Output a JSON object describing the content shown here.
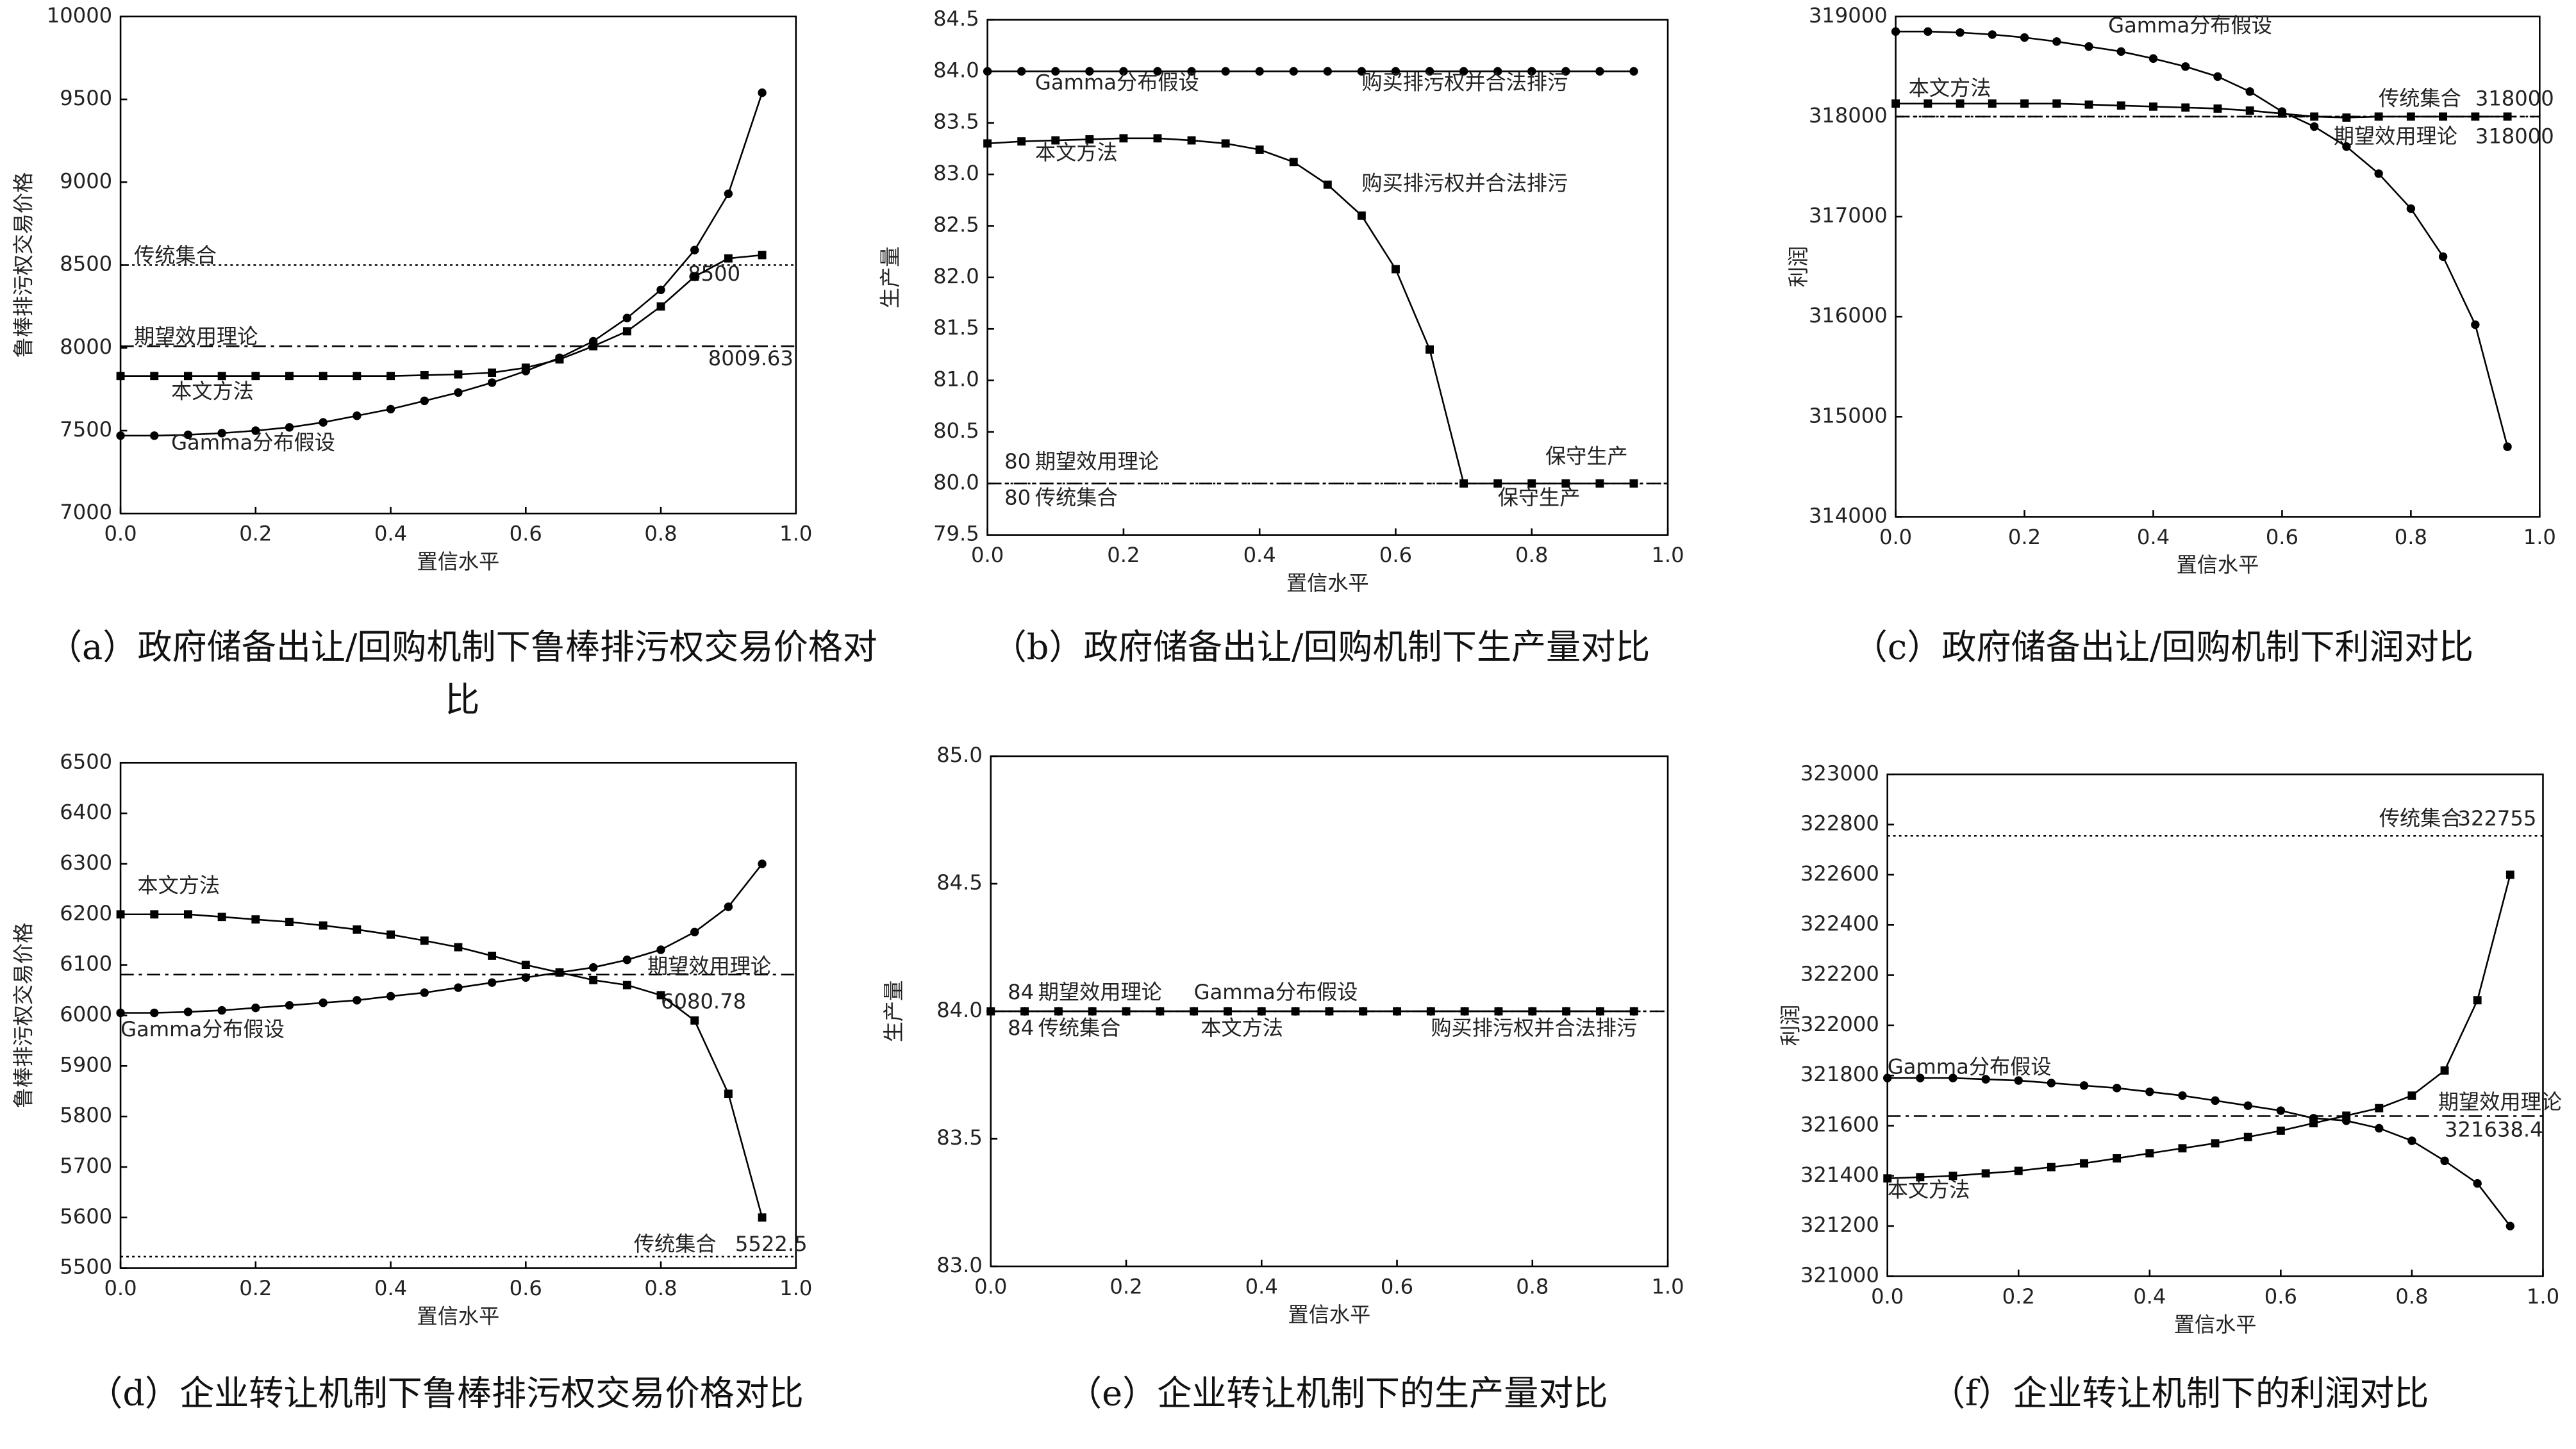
{
  "chart_data": [
    {
      "type": "line",
      "caption": "（a）政府储备出让/回购机制下鲁棒排污权交易价格对比",
      "xlabel": "置信水平",
      "ylabel": "鲁棒排污权交易价格",
      "x": [
        0,
        0.05,
        0.1,
        0.15,
        0.2,
        0.25,
        0.3,
        0.35,
        0.4,
        0.45,
        0.5,
        0.55,
        0.6,
        0.65,
        0.7,
        0.75,
        0.8,
        0.85,
        0.9,
        0.95
      ],
      "xlim": [
        0,
        1
      ],
      "xticks": [
        {
          "value": 0,
          "label": "0.0"
        },
        0.2,
        0.4,
        0.6,
        0.8,
        {
          "value": 1,
          "label": "1.0"
        }
      ],
      "ylim": [
        7000,
        10000
      ],
      "yticks": [
        7000,
        7500,
        8000,
        8500,
        9000,
        9500,
        10000
      ],
      "series": [
        {
          "name": "本文方法",
          "marker": "square",
          "color": "#000000",
          "values": [
            7830,
            7830,
            7830,
            7830,
            7830,
            7830,
            7830,
            7830,
            7830,
            7835,
            7840,
            7850,
            7880,
            7930,
            8010,
            8100,
            8250,
            8430,
            8540,
            8560
          ]
        },
        {
          "name": "Gamma分布假设",
          "marker": "circle",
          "color": "#000000",
          "values": [
            7470,
            7470,
            7475,
            7485,
            7500,
            7520,
            7550,
            7590,
            7630,
            7680,
            7730,
            7790,
            7860,
            7940,
            8040,
            8180,
            8350,
            8590,
            8930,
            9540
          ]
        }
      ],
      "reference_lines": [
        {
          "name": "传统集合",
          "value": 8500,
          "style": "dotted"
        },
        {
          "name": "期望效用理论",
          "value": 8009.63,
          "style": "dashdot"
        }
      ],
      "annotations": []
    },
    {
      "type": "line",
      "caption": "（b）政府储备出让/回购机制下生产量对比",
      "xlabel": "置信水平",
      "ylabel": "生产量",
      "x": [
        0,
        0.05,
        0.1,
        0.15,
        0.2,
        0.25,
        0.3,
        0.35,
        0.4,
        0.45,
        0.5,
        0.55,
        0.6,
        0.65,
        0.7,
        0.75,
        0.8,
        0.85,
        0.9,
        0.95
      ],
      "xlim": [
        0,
        1
      ],
      "xticks": [
        {
          "value": 0,
          "label": "0.0"
        },
        0.2,
        0.4,
        0.6,
        0.8,
        {
          "value": 1,
          "label": "1.0"
        }
      ],
      "ylim": [
        79.5,
        84.5
      ],
      "yticks": [
        79.5,
        {
          "value": 80,
          "label": "80.0"
        },
        80.5,
        {
          "value": 81,
          "label": "81.0"
        },
        81.5,
        {
          "value": 82,
          "label": "82.0"
        },
        82.5,
        {
          "value": 83,
          "label": "83.0"
        },
        83.5,
        {
          "value": 84,
          "label": "84.0"
        },
        84.5
      ],
      "series": [
        {
          "name": "本文方法",
          "marker": "square",
          "color": "#000000",
          "values": [
            83.3,
            83.32,
            83.33,
            83.34,
            83.35,
            83.35,
            83.33,
            83.3,
            83.24,
            83.12,
            82.9,
            82.6,
            82.08,
            81.3,
            80,
            80,
            80,
            80,
            80,
            80
          ]
        },
        {
          "name": "Gamma分布假设",
          "marker": "circle",
          "color": "#000000",
          "values": [
            84,
            84,
            84,
            84,
            84,
            84,
            84,
            84,
            84,
            84,
            84,
            84,
            84,
            84,
            84,
            84,
            84,
            84,
            84,
            84
          ]
        }
      ],
      "reference_lines": [
        {
          "name": "期望效用理论",
          "value": 80,
          "style": "dashdot"
        },
        {
          "name": "传统集合",
          "value": 80,
          "style": "dotted"
        }
      ],
      "annotations": [
        "购买排污权并合法排污",
        "购买排污权并合法排污",
        "保守生产",
        "保守生产"
      ]
    },
    {
      "type": "line",
      "caption": "（c）政府储备出让/回购机制下利润对比",
      "xlabel": "置信水平",
      "ylabel": "利润",
      "x": [
        0,
        0.05,
        0.1,
        0.15,
        0.2,
        0.25,
        0.3,
        0.35,
        0.4,
        0.45,
        0.5,
        0.55,
        0.6,
        0.65,
        0.7,
        0.75,
        0.8,
        0.85,
        0.9,
        0.95
      ],
      "xlim": [
        0,
        1
      ],
      "xticks": [
        {
          "value": 0,
          "label": "0.0"
        },
        0.2,
        0.4,
        0.6,
        0.8,
        {
          "value": 1,
          "label": "1.0"
        }
      ],
      "ylim": [
        314000,
        319000
      ],
      "yticks": [
        314000,
        315000,
        316000,
        317000,
        318000,
        319000
      ],
      "series": [
        {
          "name": "本文方法",
          "marker": "square",
          "color": "#000000",
          "values": [
            318130,
            318130,
            318130,
            318130,
            318130,
            318130,
            318120,
            318110,
            318100,
            318090,
            318080,
            318060,
            318030,
            318000,
            317990,
            318000,
            318000,
            318000,
            318000,
            318000
          ]
        },
        {
          "name": "Gamma分布假设",
          "marker": "circle",
          "color": "#000000",
          "values": [
            318850,
            318850,
            318840,
            318820,
            318790,
            318750,
            318700,
            318650,
            318580,
            318500,
            318400,
            318250,
            318050,
            317900,
            317700,
            317430,
            317080,
            316600,
            315920,
            314700
          ]
        }
      ],
      "reference_lines": [
        {
          "name": "传统集合",
          "value": 318000,
          "style": "dotted"
        },
        {
          "name": "期望效用理论",
          "value": 318000,
          "style": "dashdot"
        }
      ],
      "annotations": []
    },
    {
      "type": "line",
      "caption": "（d）企业转让机制下鲁棒排污权交易价格对比",
      "xlabel": "置信水平",
      "ylabel": "鲁棒排污权交易价格",
      "x": [
        0,
        0.05,
        0.1,
        0.15,
        0.2,
        0.25,
        0.3,
        0.35,
        0.4,
        0.45,
        0.5,
        0.55,
        0.6,
        0.65,
        0.7,
        0.75,
        0.8,
        0.85,
        0.9,
        0.95
      ],
      "xlim": [
        0,
        1
      ],
      "xticks": [
        {
          "value": 0,
          "label": "0.0"
        },
        0.2,
        0.4,
        0.6,
        0.8,
        {
          "value": 1,
          "label": "1.0"
        }
      ],
      "ylim": [
        5500,
        6500
      ],
      "yticks": [
        5500,
        5600,
        5700,
        5800,
        5900,
        6000,
        6100,
        6200,
        6300,
        6400,
        6500
      ],
      "series": [
        {
          "name": "本文方法",
          "marker": "square",
          "color": "#000000",
          "values": [
            6200,
            6200,
            6200,
            6195,
            6190,
            6185,
            6178,
            6170,
            6160,
            6148,
            6135,
            6118,
            6100,
            6085,
            6070,
            6060,
            6040,
            5990,
            5845,
            5600
          ]
        },
        {
          "name": "Gamma分布假设",
          "marker": "circle",
          "color": "#000000",
          "values": [
            6005,
            6005,
            6007,
            6010,
            6015,
            6020,
            6025,
            6030,
            6038,
            6045,
            6055,
            6065,
            6075,
            6085,
            6095,
            6110,
            6130,
            6165,
            6215,
            6300
          ]
        }
      ],
      "reference_lines": [
        {
          "name": "期望效用理论",
          "value": 6080.78,
          "style": "dashdot"
        },
        {
          "name": "传统集合",
          "value": 5522.5,
          "style": "dotted"
        }
      ],
      "annotations": []
    },
    {
      "type": "line",
      "caption": "（e）企业转让机制下的生产量对比",
      "xlabel": "置信水平",
      "ylabel": "生产量",
      "x": [
        0,
        0.05,
        0.1,
        0.15,
        0.2,
        0.25,
        0.3,
        0.35,
        0.4,
        0.45,
        0.5,
        0.55,
        0.6,
        0.65,
        0.7,
        0.75,
        0.8,
        0.85,
        0.9,
        0.95
      ],
      "xlim": [
        0,
        1
      ],
      "xticks": [
        {
          "value": 0,
          "label": "0.0"
        },
        0.2,
        0.4,
        0.6,
        0.8,
        {
          "value": 1,
          "label": "1.0"
        }
      ],
      "ylim": [
        83,
        85
      ],
      "yticks": [
        {
          "value": 83,
          "label": "83.0"
        },
        83.5,
        {
          "value": 84,
          "label": "84.0"
        },
        84.5,
        {
          "value": 85,
          "label": "85.0"
        }
      ],
      "series": [
        {
          "name": "本文方法",
          "marker": "square",
          "color": "#000000",
          "values": [
            84,
            84,
            84,
            84,
            84,
            84,
            84,
            84,
            84,
            84,
            84,
            84,
            84,
            84,
            84,
            84,
            84,
            84,
            84,
            84
          ]
        },
        {
          "name": "Gamma分布假设",
          "marker": "circle",
          "color": "#000000",
          "values": [
            84,
            84,
            84,
            84,
            84,
            84,
            84,
            84,
            84,
            84,
            84,
            84,
            84,
            84,
            84,
            84,
            84,
            84,
            84,
            84
          ]
        }
      ],
      "reference_lines": [
        {
          "name": "期望效用理论",
          "value": 84,
          "style": "dashdot"
        },
        {
          "name": "传统集合",
          "value": 84,
          "style": "dotted"
        }
      ],
      "annotations": [
        "购买排污权并合法排污"
      ]
    },
    {
      "type": "line",
      "caption": "（f）企业转让机制下的利润对比",
      "xlabel": "置信水平",
      "ylabel": "利润",
      "x": [
        0,
        0.05,
        0.1,
        0.15,
        0.2,
        0.25,
        0.3,
        0.35,
        0.4,
        0.45,
        0.5,
        0.55,
        0.6,
        0.65,
        0.7,
        0.75,
        0.8,
        0.85,
        0.9,
        0.95
      ],
      "xlim": [
        0,
        1
      ],
      "xticks": [
        {
          "value": 0,
          "label": "0.0"
        },
        0.2,
        0.4,
        0.6,
        0.8,
        {
          "value": 1,
          "label": "1.0"
        }
      ],
      "ylim": [
        321000,
        323000
      ],
      "yticks": [
        321000,
        321200,
        321400,
        321600,
        321800,
        322000,
        322200,
        322400,
        322600,
        322800,
        323000
      ],
      "series": [
        {
          "name": "本文方法",
          "marker": "square",
          "color": "#000000",
          "values": [
            321390,
            321395,
            321400,
            321410,
            321420,
            321435,
            321450,
            321470,
            321490,
            321510,
            321530,
            321555,
            321580,
            321610,
            321640,
            321670,
            321720,
            321820,
            322100,
            322600
          ]
        },
        {
          "name": "Gamma分布假设",
          "marker": "circle",
          "color": "#000000",
          "values": [
            321790,
            321790,
            321790,
            321785,
            321780,
            321770,
            321760,
            321750,
            321735,
            321720,
            321700,
            321680,
            321660,
            321630,
            321620,
            321590,
            321540,
            321460,
            321370,
            321200
          ]
        }
      ],
      "reference_lines": [
        {
          "name": "传统集合",
          "value": 322755,
          "style": "dotted"
        },
        {
          "name": "期望效用理论",
          "value": 321638.4,
          "style": "dashdot"
        }
      ],
      "annotations": []
    }
  ]
}
